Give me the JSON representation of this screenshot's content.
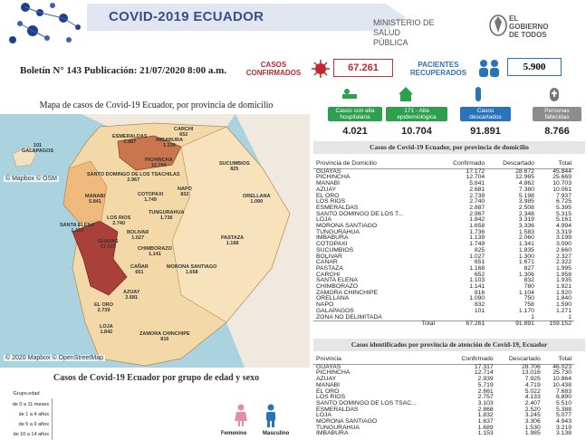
{
  "header": {
    "title": "COVID-2019 ECUADOR",
    "ministry_line1": "MINISTERIO DE",
    "ministry_line2": "SALUD PÚBLICA",
    "gov_line1": "EL",
    "gov_line2": "GOBIERNO",
    "gov_line3": "DE TODOS"
  },
  "bulletin": "Boletín N° 143  Publicación: 21/07/2020 8:00 a.m.",
  "kpis": {
    "confirmed_label_1": "CASOS",
    "confirmed_label_2": "CONFIRMADOS",
    "confirmed_value": "67.261",
    "recovered_label_1": "PACIENTES",
    "recovered_label_2": "RECUPERADOS",
    "recovered_value": "5.900"
  },
  "cards": [
    {
      "label": "Casos con alta hospitalaria",
      "value": "4.021",
      "color": "#2e9e4f"
    },
    {
      "label": "171 - Alta epidemiológica",
      "value": "10.704",
      "color": "#2e9e4f"
    },
    {
      "label": "Casos descartados",
      "value": "91.891",
      "color": "#2a73b8"
    },
    {
      "label": "Personas fallecidas",
      "value": "8.766",
      "color": "#8c8c8c"
    }
  ],
  "map": {
    "title": "Mapa de casos de Covid-19 Ecuador, por provincia de domicilio",
    "attribution_top": "© Mapbox © OSM",
    "attribution_bottom": "© 2020 Mapbox © OpenStreetMap",
    "labels": [
      {
        "name": "GALAPAGOS",
        "value": "101"
      },
      {
        "name": "ESMERALDAS",
        "value": "2.887"
      },
      {
        "name": "CARCHI",
        "value": "652"
      },
      {
        "name": "IMBABURA",
        "value": "1.139"
      },
      {
        "name": "PICHINCHA",
        "value": "12.704"
      },
      {
        "name": "SUCUMBIOS",
        "value": "825"
      },
      {
        "name": "SANTO DOMINGO DE LOS TSACHILAS",
        "value": "2.967"
      },
      {
        "name": "NAPO",
        "value": "832"
      },
      {
        "name": "ORELLANA",
        "value": "1.090"
      },
      {
        "name": "MANABI",
        "value": "5.841"
      },
      {
        "name": "COTOPAXI",
        "value": "1.749"
      },
      {
        "name": "TUNGURAHUA",
        "value": "1.736"
      },
      {
        "name": "LOS RIOS",
        "value": "2.740"
      },
      {
        "name": "BOLIVAR",
        "value": "1.027"
      },
      {
        "name": "CHIMBORAZO",
        "value": "1.141"
      },
      {
        "name": "PASTAZA",
        "value": "1.168"
      },
      {
        "name": "SANTA ELENA",
        "value": "1.103"
      },
      {
        "name": "GUAYAS",
        "value": "17.172"
      },
      {
        "name": "CAÑAR",
        "value": "651"
      },
      {
        "name": "MORONA SANTIAGO",
        "value": "1.658"
      },
      {
        "name": "AZUAY",
        "value": "2.681"
      },
      {
        "name": "EL ORO",
        "value": "2.739"
      },
      {
        "name": "LOJA",
        "value": "1.842"
      },
      {
        "name": "ZAMORA CHINCHIPE",
        "value": "816"
      }
    ]
  },
  "age": {
    "title": "Casos de  Covid-19 Ecuador por grupo de edad y sexo",
    "legend_title": "Grupo.edad",
    "groups": [
      "de 0 a 11 meses",
      "de 1 a 4 años",
      "de 5 a 9 años",
      "de 10 a 14 años"
    ],
    "female": "Femenino",
    "male": "Masculino"
  },
  "table1": {
    "title": "Casos de Covid-19 Ecuador,  por provincia de domicilio",
    "headers": [
      "Provincia de Domicilio",
      "Confirmado",
      "Descartado",
      "Total"
    ],
    "rows": [
      [
        "GUAYAS",
        "17.172",
        "28.672",
        "45.844"
      ],
      [
        "PICHINCHA",
        "12.704",
        "12.965",
        "25.669"
      ],
      [
        "MANABI",
        "5.841",
        "4.862",
        "10.703"
      ],
      [
        "AZUAY",
        "2.681",
        "7.380",
        "10.061"
      ],
      [
        "EL ORO",
        "2.739",
        "5.198",
        "7.937"
      ],
      [
        "LOS RIOS",
        "2.740",
        "3.985",
        "6.725"
      ],
      [
        "ESMERALDAS",
        "2.887",
        "2.508",
        "5.395"
      ],
      [
        "SANTO DOMINGO DE LOS T...",
        "2.967",
        "2.348",
        "5.315"
      ],
      [
        "LOJA",
        "1.842",
        "3.319",
        "5.161"
      ],
      [
        "MORONA SANTIAGO",
        "1.658",
        "3.336",
        "4.994"
      ],
      [
        "TUNGURAHUA",
        "1.736",
        "1.583",
        "3.319"
      ],
      [
        "IMBABURA",
        "1.139",
        "2.060",
        "3.199"
      ],
      [
        "COTOPAXI",
        "1.749",
        "1.341",
        "3.090"
      ],
      [
        "SUCUMBIOS",
        "825",
        "1.835",
        "2.660"
      ],
      [
        "BOLIVAR",
        "1.027",
        "1.300",
        "2.327"
      ],
      [
        "CAÑAR",
        "651",
        "1.671",
        "2.322"
      ],
      [
        "PASTAZA",
        "1.168",
        "827",
        "1.995"
      ],
      [
        "CARCHI",
        "652",
        "1.306",
        "1.958"
      ],
      [
        "SANTA ELENA",
        "1.103",
        "832",
        "1.935"
      ],
      [
        "CHIMBORAZO",
        "1.141",
        "780",
        "1.921"
      ],
      [
        "ZAMORA CHINCHIPE",
        "816",
        "1.104",
        "1.920"
      ],
      [
        "ORELLANA",
        "1.090",
        "750",
        "1.840"
      ],
      [
        "NAPO",
        "832",
        "758",
        "1.590"
      ],
      [
        "GALAPAGOS",
        "101",
        "1.170",
        "1.271"
      ],
      [
        "ZONA NO DELIMITADA",
        "",
        "1",
        "1"
      ]
    ],
    "total": [
      "Total",
      "67.261",
      "91.891",
      "159.152"
    ]
  },
  "table2": {
    "title": "Casos identificados por provincia de atención de Covid-19, Ecuador",
    "headers": [
      "Provincia",
      "Confirmado",
      "Descartado",
      "Total"
    ],
    "rows": [
      [
        "GUAYAS",
        "17.317",
        "28.706",
        "46.023"
      ],
      [
        "PICHINCHA",
        "12.714",
        "13.016",
        "25.730"
      ],
      [
        "AZUAY",
        "2.939",
        "7.925",
        "10.864"
      ],
      [
        "MANABI",
        "5.719",
        "4.719",
        "10.438"
      ],
      [
        "EL ORO",
        "2.661",
        "5.022",
        "7.683"
      ],
      [
        "LOS RIOS",
        "2.757",
        "4.133",
        "6.890"
      ],
      [
        "SANTO DOMINGO DE LOS TSAC...",
        "3.103",
        "2.407",
        "5.510"
      ],
      [
        "ESMERALDAS",
        "2.868",
        "2.520",
        "5.388"
      ],
      [
        "LOJA",
        "1.832",
        "3.245",
        "5.077"
      ],
      [
        "MORONA SANTIAGO",
        "1.637",
        "3.306",
        "4.943"
      ],
      [
        "TUNGURAHUA",
        "1.689",
        "1.530",
        "3.219"
      ],
      [
        "IMBABURA",
        "1.153",
        "1.985",
        "3.138"
      ]
    ]
  }
}
